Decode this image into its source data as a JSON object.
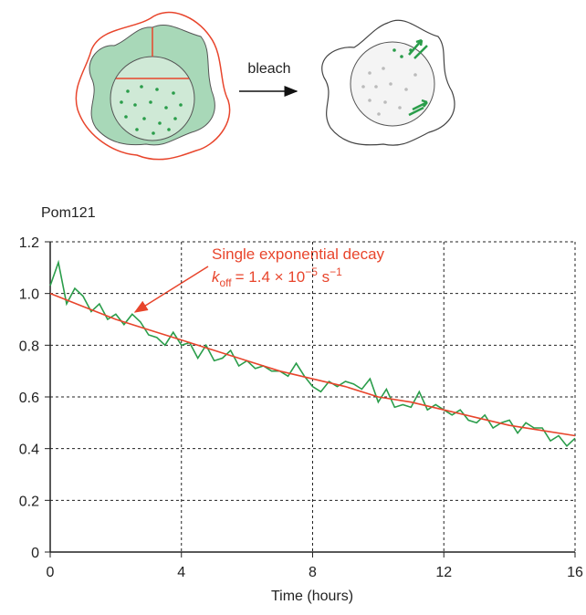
{
  "diagram": {
    "label": "bleach"
  },
  "chart_data": {
    "type": "line",
    "title": "Pom121",
    "x_label": "Time (hours)",
    "annotation": {
      "text": "Single exponential decay",
      "k": "k",
      "k_sub": "off",
      "eq": "= 1.4 × 10",
      "exp": "−5",
      "unit": " s",
      "unit_exp": "−1"
    },
    "xlim": [
      0,
      16
    ],
    "xticks": [
      0,
      4,
      8,
      12,
      16
    ],
    "ylim": [
      0,
      1.2
    ],
    "yticks": [
      0,
      0.2,
      0.4,
      0.6,
      0.8,
      {
        "value": 1,
        "label": "1.0"
      },
      1.2
    ],
    "grid": true,
    "series": [
      {
        "name": "Pom121",
        "color": "#2a9d4a",
        "x": [
          0,
          0.25,
          0.5,
          0.75,
          1,
          1.25,
          1.5,
          1.75,
          2,
          2.25,
          2.5,
          2.75,
          3,
          3.25,
          3.5,
          3.75,
          4,
          4.25,
          4.5,
          4.75,
          5,
          5.25,
          5.5,
          5.75,
          6,
          6.25,
          6.5,
          6.75,
          7,
          7.25,
          7.5,
          7.75,
          8,
          8.25,
          8.5,
          8.75,
          9,
          9.25,
          9.5,
          9.75,
          10,
          10.25,
          10.5,
          10.75,
          11,
          11.25,
          11.5,
          11.75,
          12,
          12.25,
          12.5,
          12.75,
          13,
          13.25,
          13.5,
          13.75,
          14,
          14.25,
          14.5,
          14.75,
          15,
          15.25,
          15.5,
          15.75,
          16
        ],
        "values": [
          1.03,
          1.12,
          0.96,
          1.02,
          0.99,
          0.93,
          0.96,
          0.9,
          0.92,
          0.88,
          0.92,
          0.89,
          0.84,
          0.83,
          0.8,
          0.85,
          0.8,
          0.81,
          0.75,
          0.8,
          0.74,
          0.75,
          0.78,
          0.72,
          0.74,
          0.71,
          0.72,
          0.7,
          0.7,
          0.68,
          0.73,
          0.68,
          0.64,
          0.62,
          0.66,
          0.64,
          0.66,
          0.65,
          0.63,
          0.67,
          0.58,
          0.63,
          0.56,
          0.57,
          0.56,
          0.62,
          0.55,
          0.57,
          0.55,
          0.53,
          0.55,
          0.51,
          0.5,
          0.53,
          0.48,
          0.5,
          0.51,
          0.46,
          0.5,
          0.48,
          0.48,
          0.43,
          0.45,
          0.41,
          0.44
        ]
      },
      {
        "name": "Single exponential decay",
        "color": "#e8452c",
        "x": [
          0,
          1,
          2,
          3,
          4,
          5,
          6,
          7,
          8,
          9,
          10,
          11,
          12,
          13,
          14,
          15,
          16
        ],
        "values": [
          1,
          0.95,
          0.9,
          0.86,
          0.82,
          0.78,
          0.74,
          0.7,
          0.67,
          0.64,
          0.6,
          0.58,
          0.55,
          0.52,
          0.49,
          0.47,
          0.45
        ]
      }
    ]
  }
}
